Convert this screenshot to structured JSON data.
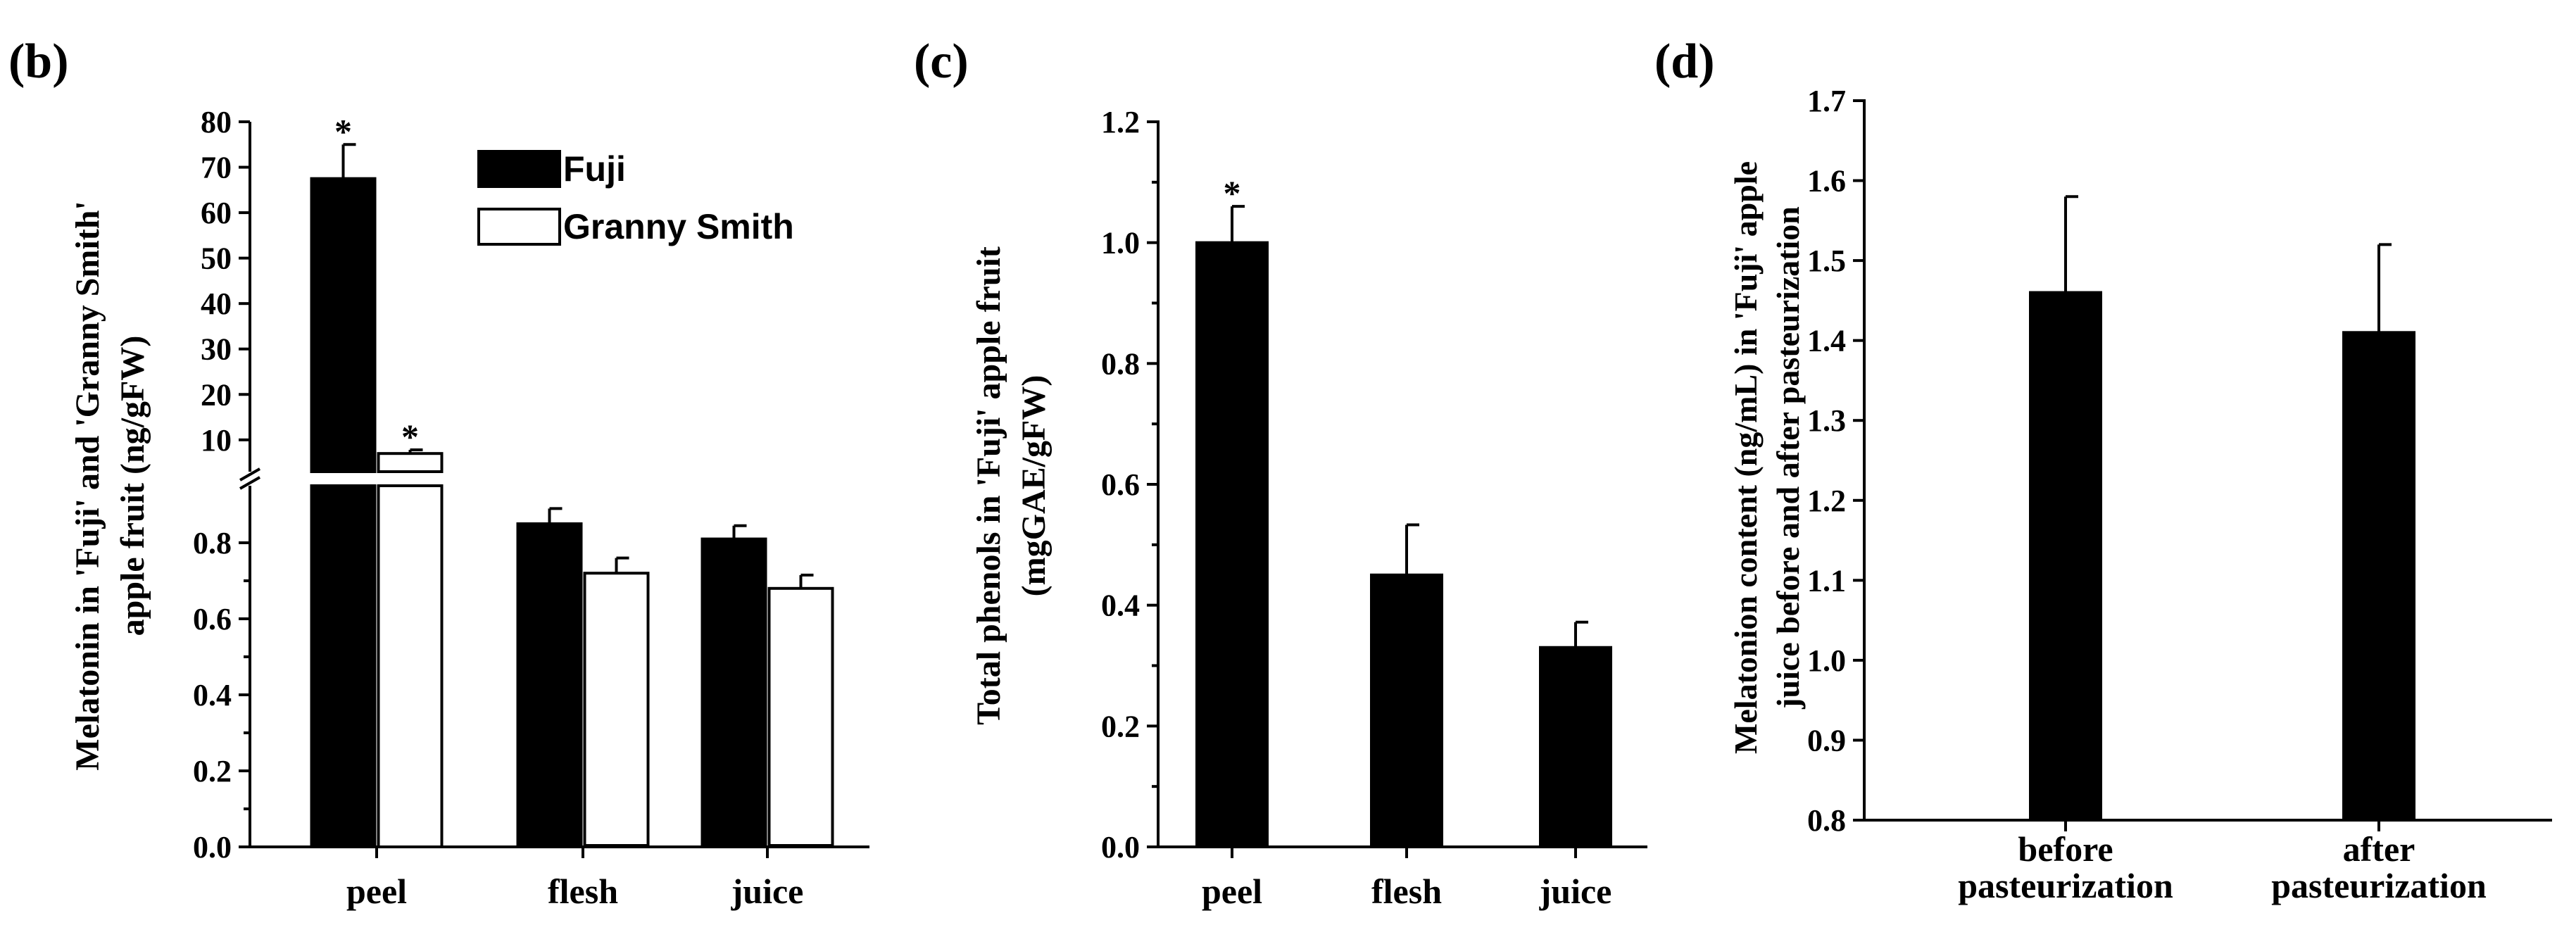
{
  "chart_data": [
    {
      "panel_label": "(b)",
      "type": "bar",
      "title": "",
      "xlabel": "",
      "ylabel_lines": [
        "Melatonin in 'Fuji' and 'Granny Smith'",
        "apple fruit (ng/gFW)"
      ],
      "categories": [
        "peel",
        "flesh",
        "juice"
      ],
      "series": [
        {
          "name": "Fuji",
          "fill": "#000000",
          "values": [
            67.5,
            0.85,
            0.81
          ],
          "errors": [
            7.5,
            0.04,
            0.035
          ],
          "significance": [
            "*",
            "",
            ""
          ]
        },
        {
          "name": "Granny Smith",
          "fill": "#ffffff",
          "values": [
            7.0,
            0.72,
            0.68
          ],
          "errors": [
            0.8,
            0.04,
            0.035
          ],
          "significance": [
            "*",
            "",
            ""
          ]
        }
      ],
      "axis_break": true,
      "ylim_lower": [
        0.0,
        0.95
      ],
      "ylim_upper": [
        3,
        80
      ],
      "yticks_lower": [
        "0.0",
        "0.2",
        "0.4",
        "0.6",
        "0.8"
      ],
      "yticks_upper": [
        "10",
        "20",
        "30",
        "40",
        "50",
        "60",
        "70",
        "80"
      ],
      "legend": [
        "Fuji",
        "Granny Smith"
      ],
      "legend_position": "top-center",
      "grid": false
    },
    {
      "panel_label": "(c)",
      "type": "bar",
      "title": "",
      "xlabel": "",
      "ylabel_lines": [
        "Total phenols in 'Fuji' apple fruit",
        "(mgGAE/gFW)"
      ],
      "categories": [
        "peel",
        "flesh",
        "juice"
      ],
      "series": [
        {
          "name": "Fuji",
          "fill": "#000000",
          "values": [
            1.0,
            0.45,
            0.33
          ],
          "errors": [
            0.06,
            0.083,
            0.042
          ],
          "significance": [
            "*",
            "",
            ""
          ]
        }
      ],
      "ylim": [
        0,
        1.2
      ],
      "yticks": [
        "0.0",
        "0.2",
        "0.4",
        "0.6",
        "0.8",
        "1.0",
        "1.2"
      ],
      "grid": false
    },
    {
      "panel_label": "(d)",
      "type": "bar",
      "title": "",
      "xlabel": "",
      "ylabel_lines": [
        "Melatonion content (ng/mL) in 'Fuji' apple",
        "juice before and after pasteurization"
      ],
      "categories": [
        [
          "before",
          "pasteurization"
        ],
        [
          "after",
          "pasteurization"
        ]
      ],
      "series": [
        {
          "name": "Fuji juice",
          "fill": "#000000",
          "values": [
            1.46,
            1.41
          ],
          "errors": [
            0.12,
            0.11
          ]
        }
      ],
      "ylim": [
        0.8,
        1.7
      ],
      "yticks": [
        "0.8",
        "0.9",
        "1.0",
        "1.1",
        "1.2",
        "1.3",
        "1.4",
        "1.5",
        "1.6",
        "1.7"
      ],
      "grid": false
    }
  ]
}
